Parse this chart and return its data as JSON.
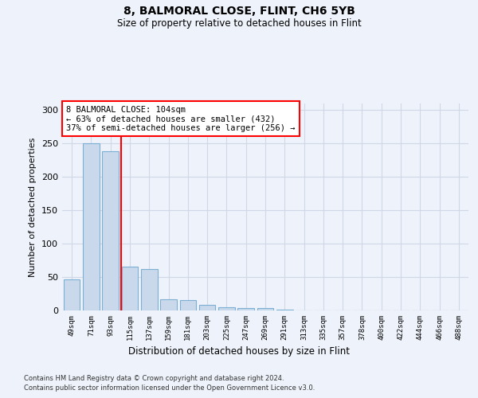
{
  "title1": "8, BALMORAL CLOSE, FLINT, CH6 5YB",
  "title2": "Size of property relative to detached houses in Flint",
  "xlabel": "Distribution of detached houses by size in Flint",
  "ylabel": "Number of detached properties",
  "categories": [
    "49sqm",
    "71sqm",
    "93sqm",
    "115sqm",
    "137sqm",
    "159sqm",
    "181sqm",
    "203sqm",
    "225sqm",
    "247sqm",
    "269sqm",
    "291sqm",
    "313sqm",
    "335sqm",
    "357sqm",
    "378sqm",
    "400sqm",
    "422sqm",
    "444sqm",
    "466sqm",
    "488sqm"
  ],
  "values": [
    47,
    250,
    238,
    66,
    62,
    17,
    16,
    8,
    5,
    4,
    3,
    1,
    0,
    0,
    0,
    0,
    0,
    0,
    0,
    0,
    0
  ],
  "bar_color": "#c9d9eb",
  "bar_edge_color": "#7bafd4",
  "property_line_x": 2.55,
  "annotation_text": "8 BALMORAL CLOSE: 104sqm\n← 63% of detached houses are smaller (432)\n37% of semi-detached houses are larger (256) →",
  "annotation_box_color": "white",
  "annotation_box_edge_color": "red",
  "line_color": "red",
  "ylim": [
    0,
    310
  ],
  "yticks": [
    0,
    50,
    100,
    150,
    200,
    250,
    300
  ],
  "grid_color": "#d0d8e8",
  "footer1": "Contains HM Land Registry data © Crown copyright and database right 2024.",
  "footer2": "Contains public sector information licensed under the Open Government Licence v3.0.",
  "bg_color": "#eef2fa"
}
